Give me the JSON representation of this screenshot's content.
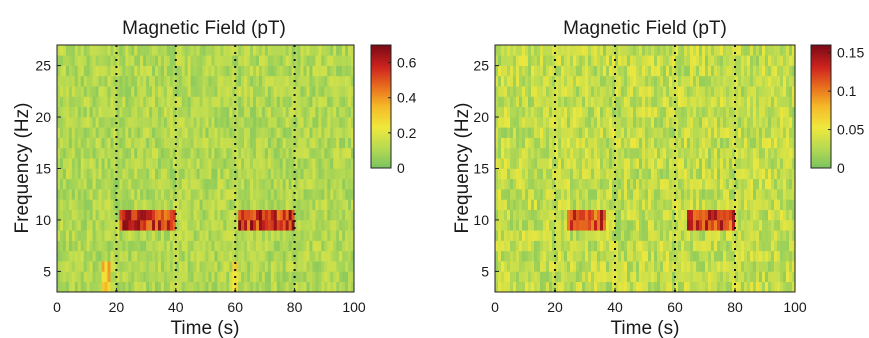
{
  "chart_data": [
    {
      "type": "heatmap",
      "title": "Magnetic Field (pT)",
      "xlabel": "Time (s)",
      "ylabel": "Frequency (Hz)",
      "xlim": [
        0,
        100
      ],
      "ylim": [
        3,
        27
      ],
      "x_ticks": [
        "0",
        "20",
        "40",
        "60",
        "80",
        "100"
      ],
      "y_ticks": [
        "5",
        "10",
        "15",
        "20",
        "25"
      ],
      "event_lines_x": [
        20,
        40,
        60,
        80
      ],
      "colorbar": {
        "min": 0,
        "max": 0.7,
        "ticks": [
          "0",
          "0.2",
          "0.4",
          "0.6"
        ]
      },
      "background_level": 0.1,
      "hotspots": [
        {
          "x": [
            21,
            40
          ],
          "y": [
            9,
            11
          ],
          "value": 0.6
        },
        {
          "x": [
            61,
            80
          ],
          "y": [
            9,
            11
          ],
          "value": 0.6
        },
        {
          "x": [
            15,
            18
          ],
          "y": [
            3,
            6
          ],
          "value": 0.35
        },
        {
          "x": [
            59,
            61
          ],
          "y": [
            3,
            6
          ],
          "value": 0.3
        }
      ]
    },
    {
      "type": "heatmap",
      "title": "Magnetic Field (pT)",
      "xlabel": "Time (s)",
      "ylabel": "Frequency (Hz)",
      "xlim": [
        0,
        100
      ],
      "ylim": [
        3,
        27
      ],
      "x_ticks": [
        "0",
        "20",
        "40",
        "60",
        "80",
        "100"
      ],
      "y_ticks": [
        "5",
        "10",
        "15",
        "20",
        "25"
      ],
      "event_lines_x": [
        20,
        40,
        60,
        80
      ],
      "colorbar": {
        "min": 0,
        "max": 0.16,
        "ticks": [
          "0",
          "0.05",
          "0.1",
          "0.15"
        ]
      },
      "background_level": 0.03,
      "hotspots": [
        {
          "x": [
            24,
            37
          ],
          "y": [
            9,
            11
          ],
          "value": 0.13
        },
        {
          "x": [
            64,
            80
          ],
          "y": [
            9,
            11
          ],
          "value": 0.13
        }
      ]
    }
  ]
}
